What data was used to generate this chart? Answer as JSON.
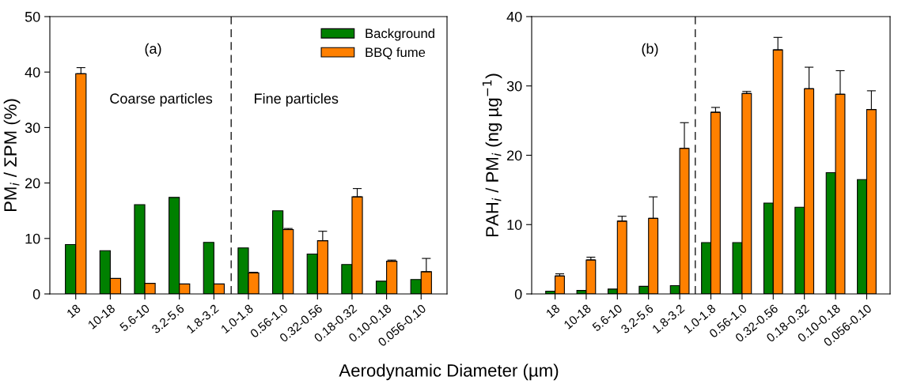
{
  "chart_data": [
    {
      "type": "bar",
      "ylabel": "PM$_{i}$ / ΣPM (%)",
      "xlabel": "Aerodynamic Diameter (µm)",
      "categories": [
        "18",
        "10-18",
        "5.6-10",
        "3.2-5.6",
        "1.8-3.2",
        "1.0-1.8",
        "0.56-1.0",
        "0.32-0.56",
        "0.18-0.32",
        "0.10-0.18",
        "0.056-0.10"
      ],
      "series": [
        {
          "name": "Background",
          "color": "#008000",
          "values": [
            8.9,
            7.8,
            16.1,
            17.4,
            9.3,
            8.3,
            15.0,
            7.2,
            5.3,
            2.3,
            2.6
          ]
        },
        {
          "name": "BBQ fume",
          "color": "#ff8000",
          "values": [
            39.7,
            2.8,
            1.9,
            1.8,
            1.8,
            3.8,
            11.6,
            9.6,
            17.5,
            5.9,
            4.0
          ],
          "errors": [
            [
              39.7,
              40.8
            ],
            null,
            null,
            null,
            null,
            [
              3.8,
              3.9
            ],
            [
              11.6,
              11.8
            ],
            [
              9.6,
              11.3
            ],
            [
              17.5,
              19.0
            ],
            [
              5.9,
              6.1
            ],
            [
              4.0,
              6.4
            ]
          ]
        }
      ],
      "ylim": [
        0,
        50
      ],
      "yticks": [
        0,
        10,
        20,
        30,
        40,
        50
      ],
      "grid": false,
      "legend": "top right",
      "annotations": [
        "(a)",
        "Coarse particles",
        "Fine particles"
      ]
    },
    {
      "type": "bar",
      "ylabel": "PAH$_{i}$ / PM$_{i}$ (ng µg$^{−1}$)",
      "categories": [
        "18",
        "10-18",
        "5.6-10",
        "3.2-5.6",
        "1.8-3.2",
        "1.0-1.8",
        "0.56-1.0",
        "0.32-0.56",
        "0.18-0.32",
        "0.10-0.18",
        "0.056-0.10"
      ],
      "series": [
        {
          "color": "#008000",
          "values": [
            0.4,
            0.5,
            0.7,
            1.1,
            1.2,
            7.4,
            7.4,
            13.1,
            12.5,
            17.5,
            16.5
          ]
        },
        {
          "color": "#ff8000",
          "values": [
            2.6,
            4.9,
            10.5,
            10.9,
            21.0,
            26.2,
            28.9,
            35.2,
            29.6,
            28.8,
            26.6
          ],
          "errors": [
            [
              2.6,
              2.9
            ],
            [
              4.9,
              5.3
            ],
            [
              10.5,
              11.2
            ],
            [
              10.9,
              14.0
            ],
            [
              21.0,
              24.7
            ],
            [
              26.2,
              26.9
            ],
            [
              28.9,
              29.2
            ],
            [
              35.2,
              37.0
            ],
            [
              29.6,
              32.7
            ],
            [
              28.8,
              32.2
            ],
            [
              26.6,
              29.3
            ]
          ]
        }
      ],
      "ylim": [
        0,
        40
      ],
      "yticks": [
        0,
        10,
        20,
        30,
        40
      ],
      "grid": false,
      "annotations": [
        "(b)"
      ]
    }
  ]
}
